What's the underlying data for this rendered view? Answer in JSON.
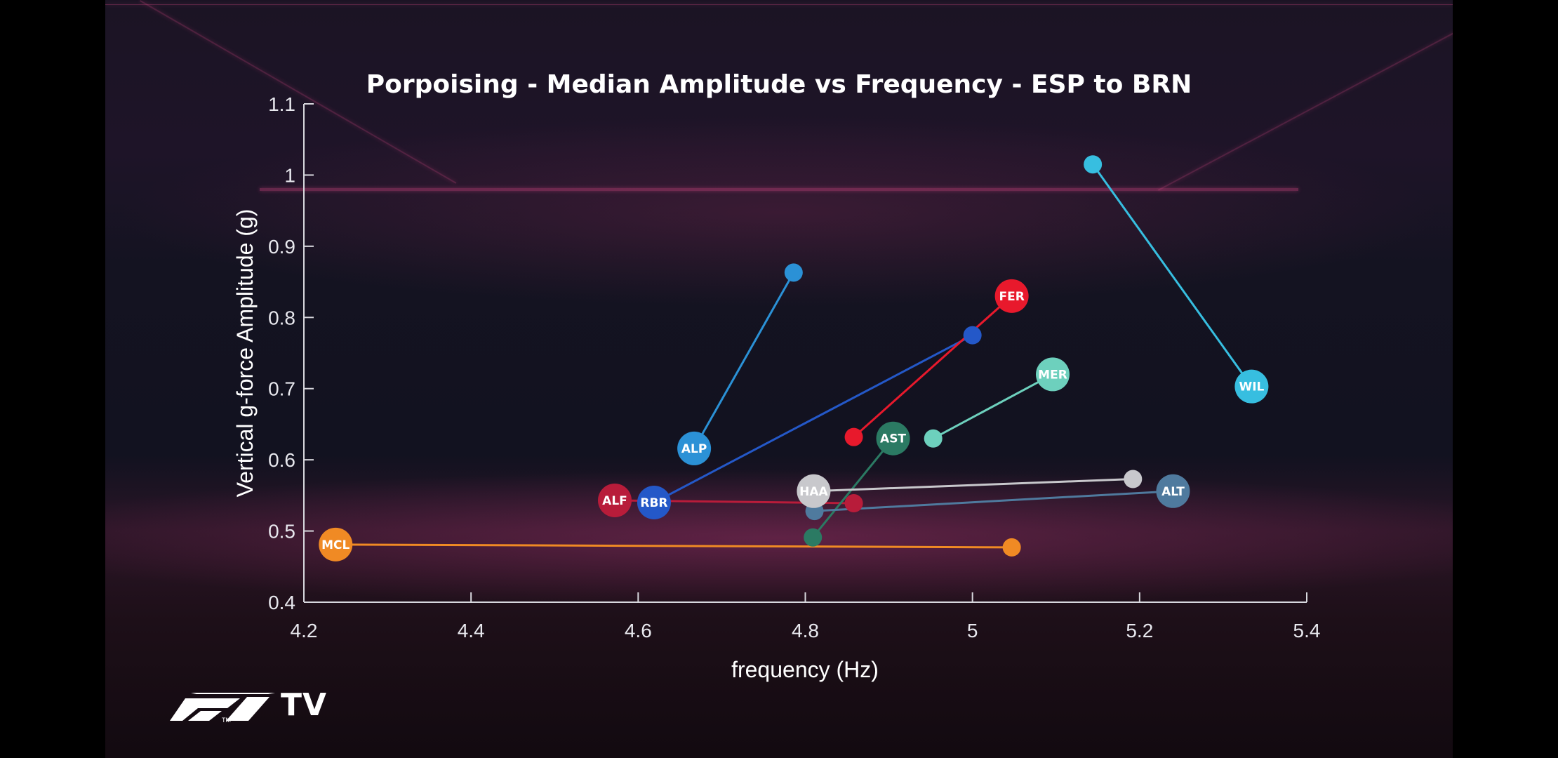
{
  "chart_data": {
    "type": "scatter",
    "title": "Porpoising - Median Amplitude vs Frequency - ESP to BRN",
    "xlabel": "frequency (Hz)",
    "ylabel": "Vertical g-force Amplitude (g)",
    "xlim": [
      4.2,
      5.4
    ],
    "ylim": [
      0.4,
      1.1
    ],
    "xticks": [
      "4.2",
      "4.4",
      "4.6",
      "4.8",
      "5",
      "5.2",
      "5.4"
    ],
    "yticks": [
      "0.4",
      "0.5",
      "0.6",
      "0.7",
      "0.8",
      "0.9",
      "1",
      "1.1"
    ],
    "grid": false,
    "legend": "none",
    "series": [
      {
        "name": "MCL",
        "color": "#f08a24",
        "labeled": {
          "x": 4.238,
          "y": 0.481
        },
        "other": {
          "x": 5.047,
          "y": 0.477
        }
      },
      {
        "name": "ALF",
        "color": "#b81c3a",
        "labeled": {
          "x": 4.572,
          "y": 0.543
        },
        "other": {
          "x": 4.858,
          "y": 0.539
        }
      },
      {
        "name": "RBR",
        "color": "#2458c8",
        "labeled": {
          "x": 4.619,
          "y": 0.54
        },
        "other": {
          "x": 5.0,
          "y": 0.775
        }
      },
      {
        "name": "ALP",
        "color": "#2b91d6",
        "labeled": {
          "x": 4.667,
          "y": 0.616
        },
        "other": {
          "x": 4.786,
          "y": 0.863
        }
      },
      {
        "name": "FER",
        "color": "#e8192c",
        "labeled": {
          "x": 5.047,
          "y": 0.83
        },
        "other": {
          "x": 4.858,
          "y": 0.632
        }
      },
      {
        "name": "AST",
        "color": "#2b7a63",
        "labeled": {
          "x": 4.905,
          "y": 0.63
        },
        "other": {
          "x": 4.809,
          "y": 0.491
        }
      },
      {
        "name": "MER",
        "color": "#6dd0bd",
        "labeled": {
          "x": 5.096,
          "y": 0.72
        },
        "other": {
          "x": 4.953,
          "y": 0.63
        }
      },
      {
        "name": "HAA",
        "color": "#c8c8cc",
        "labeled": {
          "x": 4.81,
          "y": 0.556
        },
        "other": {
          "x": 5.192,
          "y": 0.573
        }
      },
      {
        "name": "ALT",
        "color": "#4f7a9e",
        "labeled": {
          "x": 5.24,
          "y": 0.556
        },
        "other": {
          "x": 4.811,
          "y": 0.528
        }
      },
      {
        "name": "WIL",
        "color": "#37bee0",
        "labeled": {
          "x": 5.334,
          "y": 0.703
        },
        "other": {
          "x": 5.144,
          "y": 1.015
        }
      }
    ]
  },
  "branding": {
    "logo_text": "F1",
    "logo_tm": "TM",
    "tv_text": "TV"
  }
}
